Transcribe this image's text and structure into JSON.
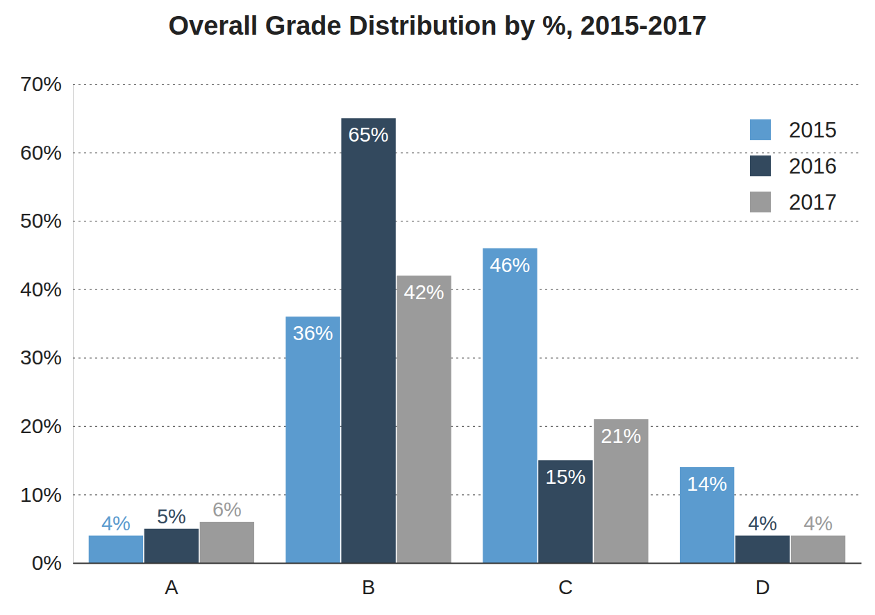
{
  "chart_data": {
    "type": "bar",
    "title": "Overall Grade Distribution by %, 2015-2017",
    "categories": [
      "A",
      "B",
      "C",
      "D"
    ],
    "series": [
      {
        "name": "2015",
        "color": "#5b9bcf",
        "values": [
          4,
          36,
          46,
          14
        ],
        "value_labels": [
          "4%",
          "36%",
          "46%",
          "14%"
        ]
      },
      {
        "name": "2016",
        "color": "#33495e",
        "values": [
          5,
          65,
          15,
          4
        ],
        "value_labels": [
          "5%",
          "65%",
          "15%",
          "4%"
        ]
      },
      {
        "name": "2017",
        "color": "#9b9b9b",
        "values": [
          6,
          42,
          21,
          4
        ],
        "value_labels": [
          "6%",
          "42%",
          "21%",
          "4%"
        ]
      }
    ],
    "ylim": [
      0,
      70
    ],
    "yticks": [
      {
        "value": 0,
        "label": "0%"
      },
      {
        "value": 10,
        "label": "10%"
      },
      {
        "value": 20,
        "label": "20%"
      },
      {
        "value": 30,
        "label": "30%"
      },
      {
        "value": 40,
        "label": "40%"
      },
      {
        "value": 50,
        "label": "50%"
      },
      {
        "value": 60,
        "label": "60%"
      },
      {
        "value": 70,
        "label": "70%"
      }
    ],
    "grid": true,
    "legend": "top-right",
    "data_labels": true
  }
}
